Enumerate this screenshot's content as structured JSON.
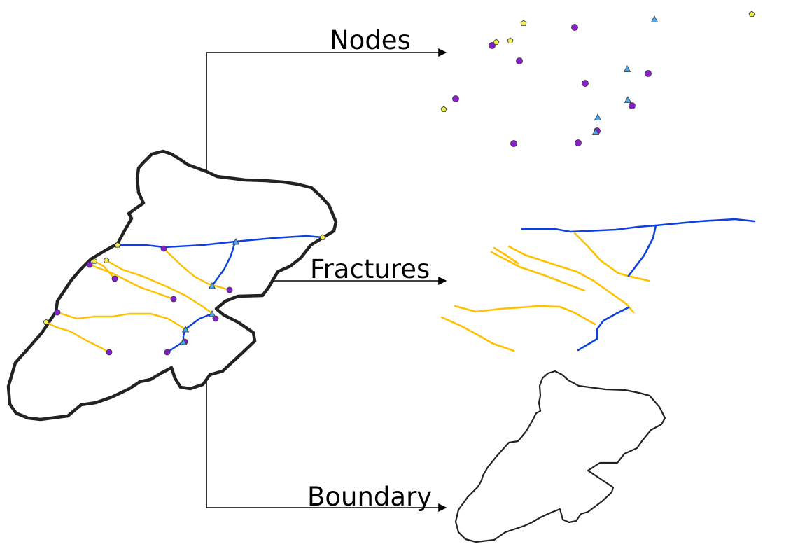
{
  "labels": {
    "nodes": "Nodes",
    "fractures": "Fractures",
    "boundary": "Boundary"
  },
  "colors": {
    "boundary": "#222222",
    "fracture_yellow": "#ffc000",
    "fracture_blue": "#0d3fe3",
    "node_purple": "#8a1fd1",
    "node_yellow": "#f0f050",
    "node_blue": "#4aa8f0",
    "arrow": "#000000"
  },
  "icons": {
    "arrow": "arrow-right-icon",
    "node_circle": "circle-node-icon",
    "node_pentagon": "pentagon-node-icon",
    "node_triangle": "triangle-node-icon"
  }
}
